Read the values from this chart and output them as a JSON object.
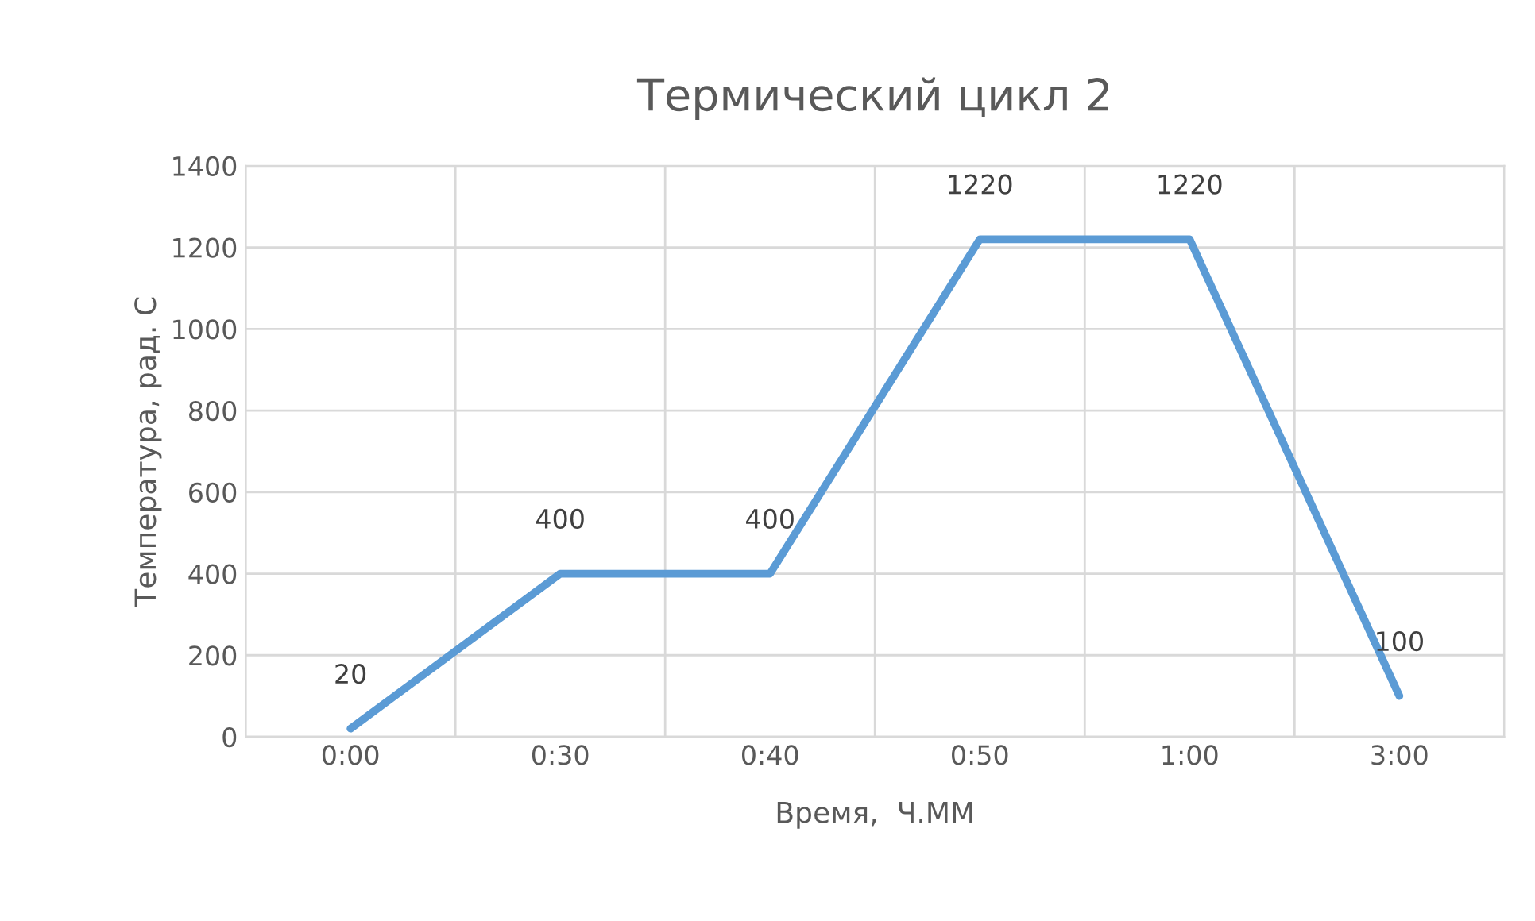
{
  "chart_data": {
    "type": "line",
    "title": "Термический цикл 2",
    "xlabel": "Время,  Ч.ММ",
    "ylabel": "Температура, рад. С",
    "categories": [
      "0:00",
      "0:30",
      "0:40",
      "0:50",
      "1:00",
      "3:00"
    ],
    "series": [
      {
        "color": "#5b9bd5",
        "values": [
          20,
          400,
          400,
          1220,
          1220,
          100
        ]
      }
    ],
    "ylim": [
      0,
      1400
    ],
    "yticks": [
      0,
      200,
      400,
      600,
      800,
      1000,
      1200,
      1400
    ],
    "grid": true,
    "data_labels": true,
    "marker": "none",
    "line_style": "solid",
    "legend": false
  }
}
